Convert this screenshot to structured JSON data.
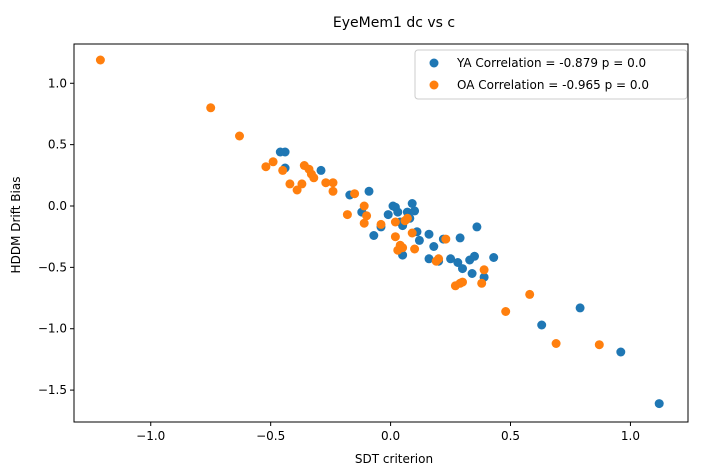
{
  "chart_data": {
    "type": "scatter",
    "title": "EyeMem1 dc vs c",
    "xlabel": "SDT criterion",
    "ylabel": "HDDM Drift Bias",
    "xlim": [
      -1.32,
      1.24
    ],
    "ylim": [
      -1.76,
      1.32
    ],
    "xticks": [
      -1.0,
      -0.5,
      0.0,
      0.5,
      1.0
    ],
    "xtick_labels": [
      "−1.0",
      "−0.5",
      "0.0",
      "0.5",
      "1.0"
    ],
    "yticks": [
      -1.5,
      -1.0,
      -0.5,
      0.0,
      0.5,
      1.0
    ],
    "ytick_labels": [
      "−1.5",
      "−1.0",
      "−0.5",
      "0.0",
      "0.5",
      "1.0"
    ],
    "grid": false,
    "legend_position": "top-right",
    "series": [
      {
        "name": "YA Correlation = -0.879 p = 0.0",
        "color": "#1f77b4",
        "points": [
          [
            -0.46,
            0.44
          ],
          [
            -0.44,
            0.44
          ],
          [
            -0.44,
            0.31
          ],
          [
            -0.29,
            0.29
          ],
          [
            -0.17,
            0.09
          ],
          [
            -0.12,
            -0.05
          ],
          [
            -0.09,
            0.12
          ],
          [
            -0.07,
            -0.24
          ],
          [
            -0.04,
            -0.17
          ],
          [
            -0.01,
            -0.07
          ],
          [
            0.01,
            0.0
          ],
          [
            0.02,
            -0.01
          ],
          [
            0.03,
            -0.05
          ],
          [
            0.04,
            -0.13
          ],
          [
            0.05,
            -0.16
          ],
          [
            0.05,
            -0.4
          ],
          [
            0.07,
            -0.05
          ],
          [
            0.08,
            -0.1
          ],
          [
            0.09,
            0.02
          ],
          [
            0.1,
            -0.04
          ],
          [
            0.11,
            -0.21
          ],
          [
            0.12,
            -0.28
          ],
          [
            0.16,
            -0.23
          ],
          [
            0.16,
            -0.43
          ],
          [
            0.18,
            -0.33
          ],
          [
            0.2,
            -0.45
          ],
          [
            0.22,
            -0.27
          ],
          [
            0.25,
            -0.43
          ],
          [
            0.28,
            -0.46
          ],
          [
            0.29,
            -0.26
          ],
          [
            0.3,
            -0.51
          ],
          [
            0.33,
            -0.44
          ],
          [
            0.34,
            -0.55
          ],
          [
            0.35,
            -0.41
          ],
          [
            0.36,
            -0.17
          ],
          [
            0.39,
            -0.58
          ],
          [
            0.43,
            -0.42
          ],
          [
            0.63,
            -0.97
          ],
          [
            0.79,
            -0.83
          ],
          [
            0.96,
            -1.19
          ],
          [
            1.12,
            -1.61
          ]
        ]
      },
      {
        "name": "OA Correlation = -0.965 p = 0.0",
        "color": "#ff7f0e",
        "points": [
          [
            -1.21,
            1.19
          ],
          [
            -0.75,
            0.8
          ],
          [
            -0.63,
            0.57
          ],
          [
            -0.52,
            0.32
          ],
          [
            -0.49,
            0.36
          ],
          [
            -0.45,
            0.29
          ],
          [
            -0.42,
            0.18
          ],
          [
            -0.39,
            0.13
          ],
          [
            -0.37,
            0.18
          ],
          [
            -0.36,
            0.33
          ],
          [
            -0.34,
            0.3
          ],
          [
            -0.33,
            0.26
          ],
          [
            -0.32,
            0.23
          ],
          [
            -0.27,
            0.19
          ],
          [
            -0.24,
            0.19
          ],
          [
            -0.24,
            0.12
          ],
          [
            -0.18,
            -0.07
          ],
          [
            -0.15,
            0.1
          ],
          [
            -0.11,
            0.0
          ],
          [
            -0.11,
            -0.14
          ],
          [
            -0.1,
            -0.08
          ],
          [
            -0.04,
            -0.15
          ],
          [
            0.02,
            -0.25
          ],
          [
            0.02,
            -0.13
          ],
          [
            0.03,
            -0.36
          ],
          [
            0.04,
            -0.32
          ],
          [
            0.05,
            -0.34
          ],
          [
            0.06,
            -0.12
          ],
          [
            0.07,
            -0.1
          ],
          [
            0.09,
            -0.22
          ],
          [
            0.1,
            -0.35
          ],
          [
            0.19,
            -0.45
          ],
          [
            0.2,
            -0.43
          ],
          [
            0.23,
            -0.27
          ],
          [
            0.27,
            -0.65
          ],
          [
            0.29,
            -0.63
          ],
          [
            0.3,
            -0.62
          ],
          [
            0.38,
            -0.63
          ],
          [
            0.39,
            -0.52
          ],
          [
            0.48,
            -0.86
          ],
          [
            0.58,
            -0.72
          ],
          [
            0.69,
            -1.12
          ],
          [
            0.87,
            -1.13
          ]
        ]
      }
    ]
  }
}
